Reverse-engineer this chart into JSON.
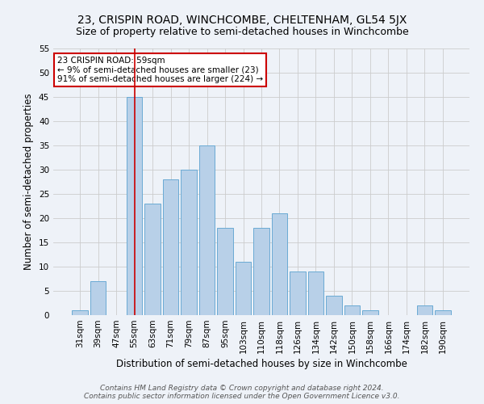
{
  "title": "23, CRISPIN ROAD, WINCHCOMBE, CHELTENHAM, GL54 5JX",
  "subtitle": "Size of property relative to semi-detached houses in Winchcombe",
  "xlabel": "Distribution of semi-detached houses by size in Winchcombe",
  "ylabel": "Number of semi-detached properties",
  "categories": [
    "31sqm",
    "39sqm",
    "47sqm",
    "55sqm",
    "63sqm",
    "71sqm",
    "79sqm",
    "87sqm",
    "95sqm",
    "103sqm",
    "110sqm",
    "118sqm",
    "126sqm",
    "134sqm",
    "142sqm",
    "150sqm",
    "158sqm",
    "166sqm",
    "174sqm",
    "182sqm",
    "190sqm"
  ],
  "values": [
    1,
    7,
    0,
    45,
    23,
    28,
    30,
    35,
    18,
    11,
    18,
    21,
    9,
    9,
    4,
    2,
    1,
    0,
    0,
    2,
    1
  ],
  "bar_color": "#b8d0e8",
  "bar_edge_color": "#6aaad4",
  "vline_x": 3.0,
  "vline_color": "#cc0000",
  "annotation_text": "23 CRISPIN ROAD: 59sqm\n← 9% of semi-detached houses are smaller (23)\n91% of semi-detached houses are larger (224) →",
  "annotation_box_color": "#ffffff",
  "annotation_box_edge_color": "#cc0000",
  "ylim": [
    0,
    55
  ],
  "yticks": [
    0,
    5,
    10,
    15,
    20,
    25,
    30,
    35,
    40,
    45,
    50,
    55
  ],
  "grid_color": "#cccccc",
  "background_color": "#eef2f8",
  "footer_text": "Contains HM Land Registry data © Crown copyright and database right 2024.\nContains public sector information licensed under the Open Government Licence v3.0.",
  "title_fontsize": 10,
  "subtitle_fontsize": 9,
  "axis_label_fontsize": 8.5,
  "tick_fontsize": 7.5,
  "footer_fontsize": 6.5
}
